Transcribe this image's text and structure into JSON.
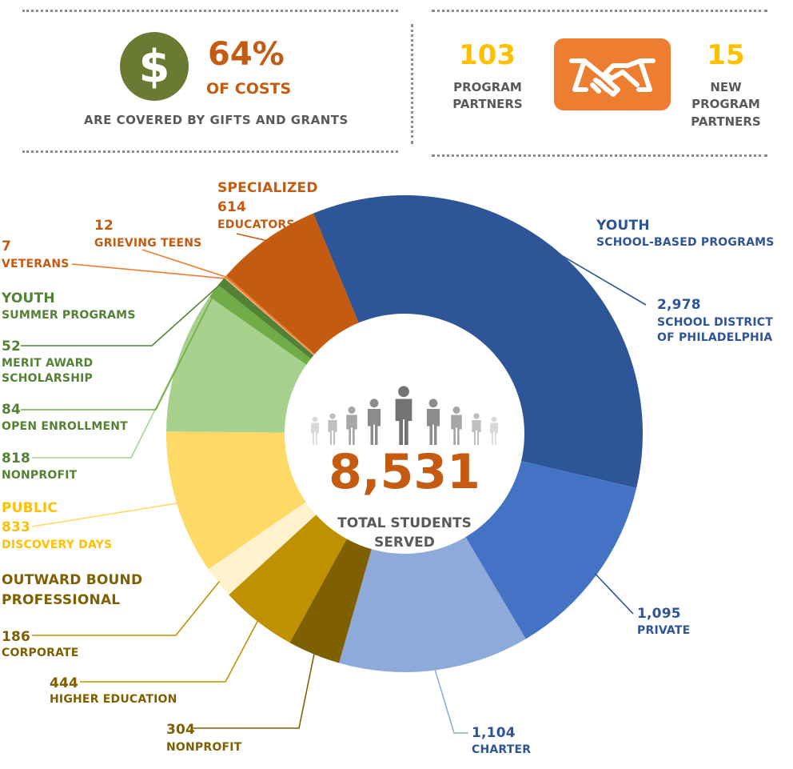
{
  "stats": {
    "costs": {
      "icon": "dollar-icon",
      "percent": "64%",
      "of": "OF COSTS",
      "note": "ARE COVERED BY GIFTS AND GRANTS"
    },
    "partners": {
      "icon": "handshake-icon",
      "count": "103",
      "count_label_1": "PROGRAM",
      "count_label_2": "PARTNERS",
      "new_count": "15",
      "new_label_1": "NEW",
      "new_label_2": "PROGRAM",
      "new_label_3": "PARTNERS"
    }
  },
  "chart_data": {
    "type": "pie",
    "donut": true,
    "total": "8,531",
    "total_label_1": "TOTAL STUDENTS",
    "total_label_2": "SERVED",
    "center_icon": "people-icon",
    "groups": {
      "youth_school": "YOUTH",
      "youth_school_sub": "SCHOOL-BASED PROGRAMS",
      "specialized": "SPECIALIZED",
      "youth_summer": "YOUTH",
      "youth_summer_sub": "SUMMER PROGRAMS",
      "public": "PUBLIC",
      "professional_1": "OUTWARD BOUND",
      "professional_2": "PROFESSIONAL"
    },
    "slices": [
      {
        "value": 2978,
        "label": "2,978",
        "name_1": "SCHOOL DISTRICT",
        "name_2": "OF PHILADELPHIA",
        "color": "#2e5597"
      },
      {
        "value": 1095,
        "label": "1,095",
        "name_1": "PRIVATE",
        "color": "#4472c4"
      },
      {
        "value": 1104,
        "label": "1,104",
        "name_1": "CHARTER",
        "color": "#8eaadb"
      },
      {
        "value": 304,
        "label": "304",
        "name_1": "NONPROFIT",
        "color": "#7f6000"
      },
      {
        "value": 444,
        "label": "444",
        "name_1": "HIGHER EDUCATION",
        "color": "#bf9000"
      },
      {
        "value": 186,
        "label": "186",
        "name_1": "CORPORATE",
        "color": "#fff2cc"
      },
      {
        "value": 833,
        "label": "833",
        "name_1": "DISCOVERY DAYS",
        "color": "#ffd966"
      },
      {
        "value": 818,
        "label": "818",
        "name_1": "NONPROFIT",
        "color": "#a9d18e"
      },
      {
        "value": 84,
        "label": "84",
        "name_1": "OPEN ENROLLMENT",
        "color": "#70ad47"
      },
      {
        "value": 52,
        "label": "52",
        "name_1": "MERIT AWARD",
        "name_2": "SCHOLARSHIP",
        "color": "#548235"
      },
      {
        "value": 7,
        "label": "7",
        "name_1": "VETERANS",
        "color": "#f4b183"
      },
      {
        "value": 12,
        "label": "12",
        "name_1": "GRIEVING TEENS",
        "color": "#ed7d31"
      },
      {
        "value": 614,
        "label": "614",
        "name_1": "EDUCATORS",
        "color": "#c55a11"
      }
    ]
  }
}
